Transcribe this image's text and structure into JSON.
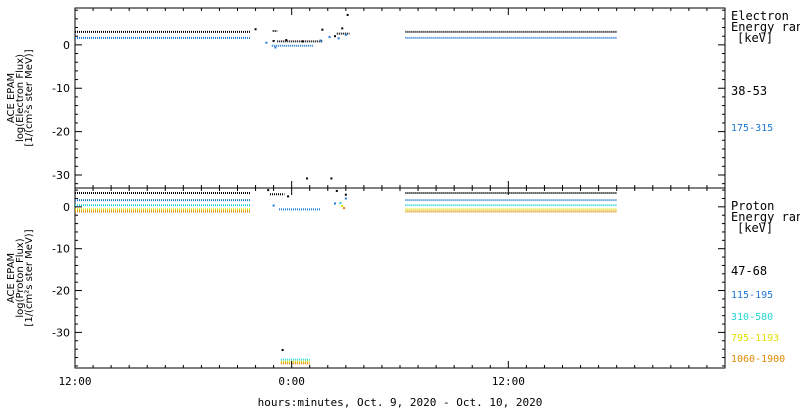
{
  "x_axis": {
    "ticks": [
      "12:00",
      "0:00",
      "12:00"
    ],
    "label": "hours:minutes, Oct.  9, 2020 - Oct. 10, 2020"
  },
  "colors": {
    "black": "#000000",
    "blue": "#1e7ad6",
    "cyan": "#25d3d3",
    "yellow": "#e0e000",
    "orange": "#e08a00"
  },
  "chart_data": [
    {
      "type": "scatter",
      "panel": "electron",
      "ylabel": [
        "ACE EPAM",
        "log(Electron Flux)",
        "[1/(cm²s ster MeV)]"
      ],
      "yticks": [
        0,
        -10,
        -20,
        -30
      ],
      "ylim": [
        -33,
        8.5
      ],
      "xlim_hours": [
        12,
        48
      ],
      "legend_title": [
        "Electron",
        "Energy ran",
        "[keV]"
      ],
      "series": [
        {
          "name": "38-53",
          "color": "#000000",
          "segments": [
            {
              "x": [
                12.0,
                21.7
              ],
              "y": 3.0
            },
            {
              "x": [
                22.95,
                23.2
              ],
              "y": 3.2
            },
            {
              "x": [
                23.2,
                25.7
              ],
              "y": 0.8
            },
            {
              "x": [
                26.5,
                27.2
              ],
              "y": 2.6
            },
            {
              "x": [
                30.3,
                42.0
              ],
              "y": 3.0
            }
          ],
          "points": [
            [
              22.0,
              3.6
            ],
            [
              23.0,
              0.9
            ],
            [
              23.7,
              1.1
            ],
            [
              24.6,
              0.8
            ],
            [
              25.7,
              3.5
            ],
            [
              26.4,
              2.0
            ],
            [
              26.8,
              3.8
            ],
            [
              27.1,
              6.9
            ],
            [
              24.85,
              -30.8
            ],
            [
              26.2,
              -30.8
            ]
          ]
        },
        {
          "name": "175-315",
          "color": "#1e7ad6",
          "segments": [
            {
              "x": [
                12.0,
                21.7
              ],
              "y": 1.6
            },
            {
              "x": [
                22.9,
                25.2
              ],
              "y": -0.2
            },
            {
              "x": [
                30.3,
                42.0
              ],
              "y": 1.6
            }
          ],
          "points": [
            [
              22.6,
              0.5
            ],
            [
              23.1,
              -0.6
            ],
            [
              25.6,
              1.0
            ],
            [
              26.1,
              1.8
            ],
            [
              26.6,
              1.5
            ],
            [
              27.0,
              2.3
            ]
          ]
        }
      ]
    },
    {
      "type": "scatter",
      "panel": "proton",
      "ylabel": [
        "ACE EPAM",
        "log(Proton Flux)",
        "[1/(cm²s ster MeV)]"
      ],
      "yticks": [
        0,
        -10,
        -20,
        -30
      ],
      "ylim": [
        -38.5,
        4.5
      ],
      "xlim_hours": [
        12,
        48
      ],
      "legend_title": [
        "Proton",
        "Energy ran",
        "[keV]"
      ],
      "series": [
        {
          "name": "47-68",
          "color": "#000000",
          "segments": [
            {
              "x": [
                12.0,
                21.7
              ],
              "y": 3.3
            },
            {
              "x": [
                30.3,
                42.0
              ],
              "y": 3.3
            },
            {
              "x": [
                22.8,
                23.6
              ],
              "y": 3.0
            }
          ],
          "points": [
            [
              22.7,
              4.0
            ],
            [
              23.8,
              2.5
            ],
            [
              26.5,
              3.8
            ],
            [
              27.0,
              2.9
            ],
            [
              23.5,
              -34.2
            ]
          ]
        },
        {
          "name": "115-195",
          "color": "#1e7ad6",
          "segments": [
            {
              "x": [
                12.0,
                21.7
              ],
              "y": 1.6
            },
            {
              "x": [
                30.3,
                42.0
              ],
              "y": 1.6
            },
            {
              "x": [
                23.3,
                25.6
              ],
              "y": -0.6
            }
          ],
          "points": [
            [
              23.0,
              0.3
            ],
            [
              26.4,
              0.8
            ],
            [
              27.0,
              2.0
            ]
          ]
        },
        {
          "name": "310-580",
          "color": "#25d3d3",
          "segments": [
            {
              "x": [
                12.0,
                21.7
              ],
              "y": 0.4
            },
            {
              "x": [
                30.3,
                42.0
              ],
              "y": 0.4
            },
            {
              "x": [
                23.4,
                25.0
              ],
              "y": -36.5
            }
          ],
          "points": [
            [
              26.7,
              0.9
            ]
          ]
        },
        {
          "name": "795-1193",
          "color": "#e0e000",
          "segments": [
            {
              "x": [
                12.0,
                21.7
              ],
              "y": -0.6
            },
            {
              "x": [
                30.3,
                42.0
              ],
              "y": -0.6
            },
            {
              "x": [
                23.4,
                25.0
              ],
              "y": -37.0
            }
          ],
          "points": [
            [
              26.8,
              0.2
            ]
          ]
        },
        {
          "name": "1060-1900",
          "color": "#e08a00",
          "segments": [
            {
              "x": [
                12.0,
                21.7
              ],
              "y": -1.1
            },
            {
              "x": [
                30.3,
                42.0
              ],
              "y": -1.1
            },
            {
              "x": [
                23.4,
                25.0
              ],
              "y": -37.4
            }
          ],
          "points": [
            [
              26.9,
              -0.3
            ]
          ]
        }
      ]
    }
  ]
}
